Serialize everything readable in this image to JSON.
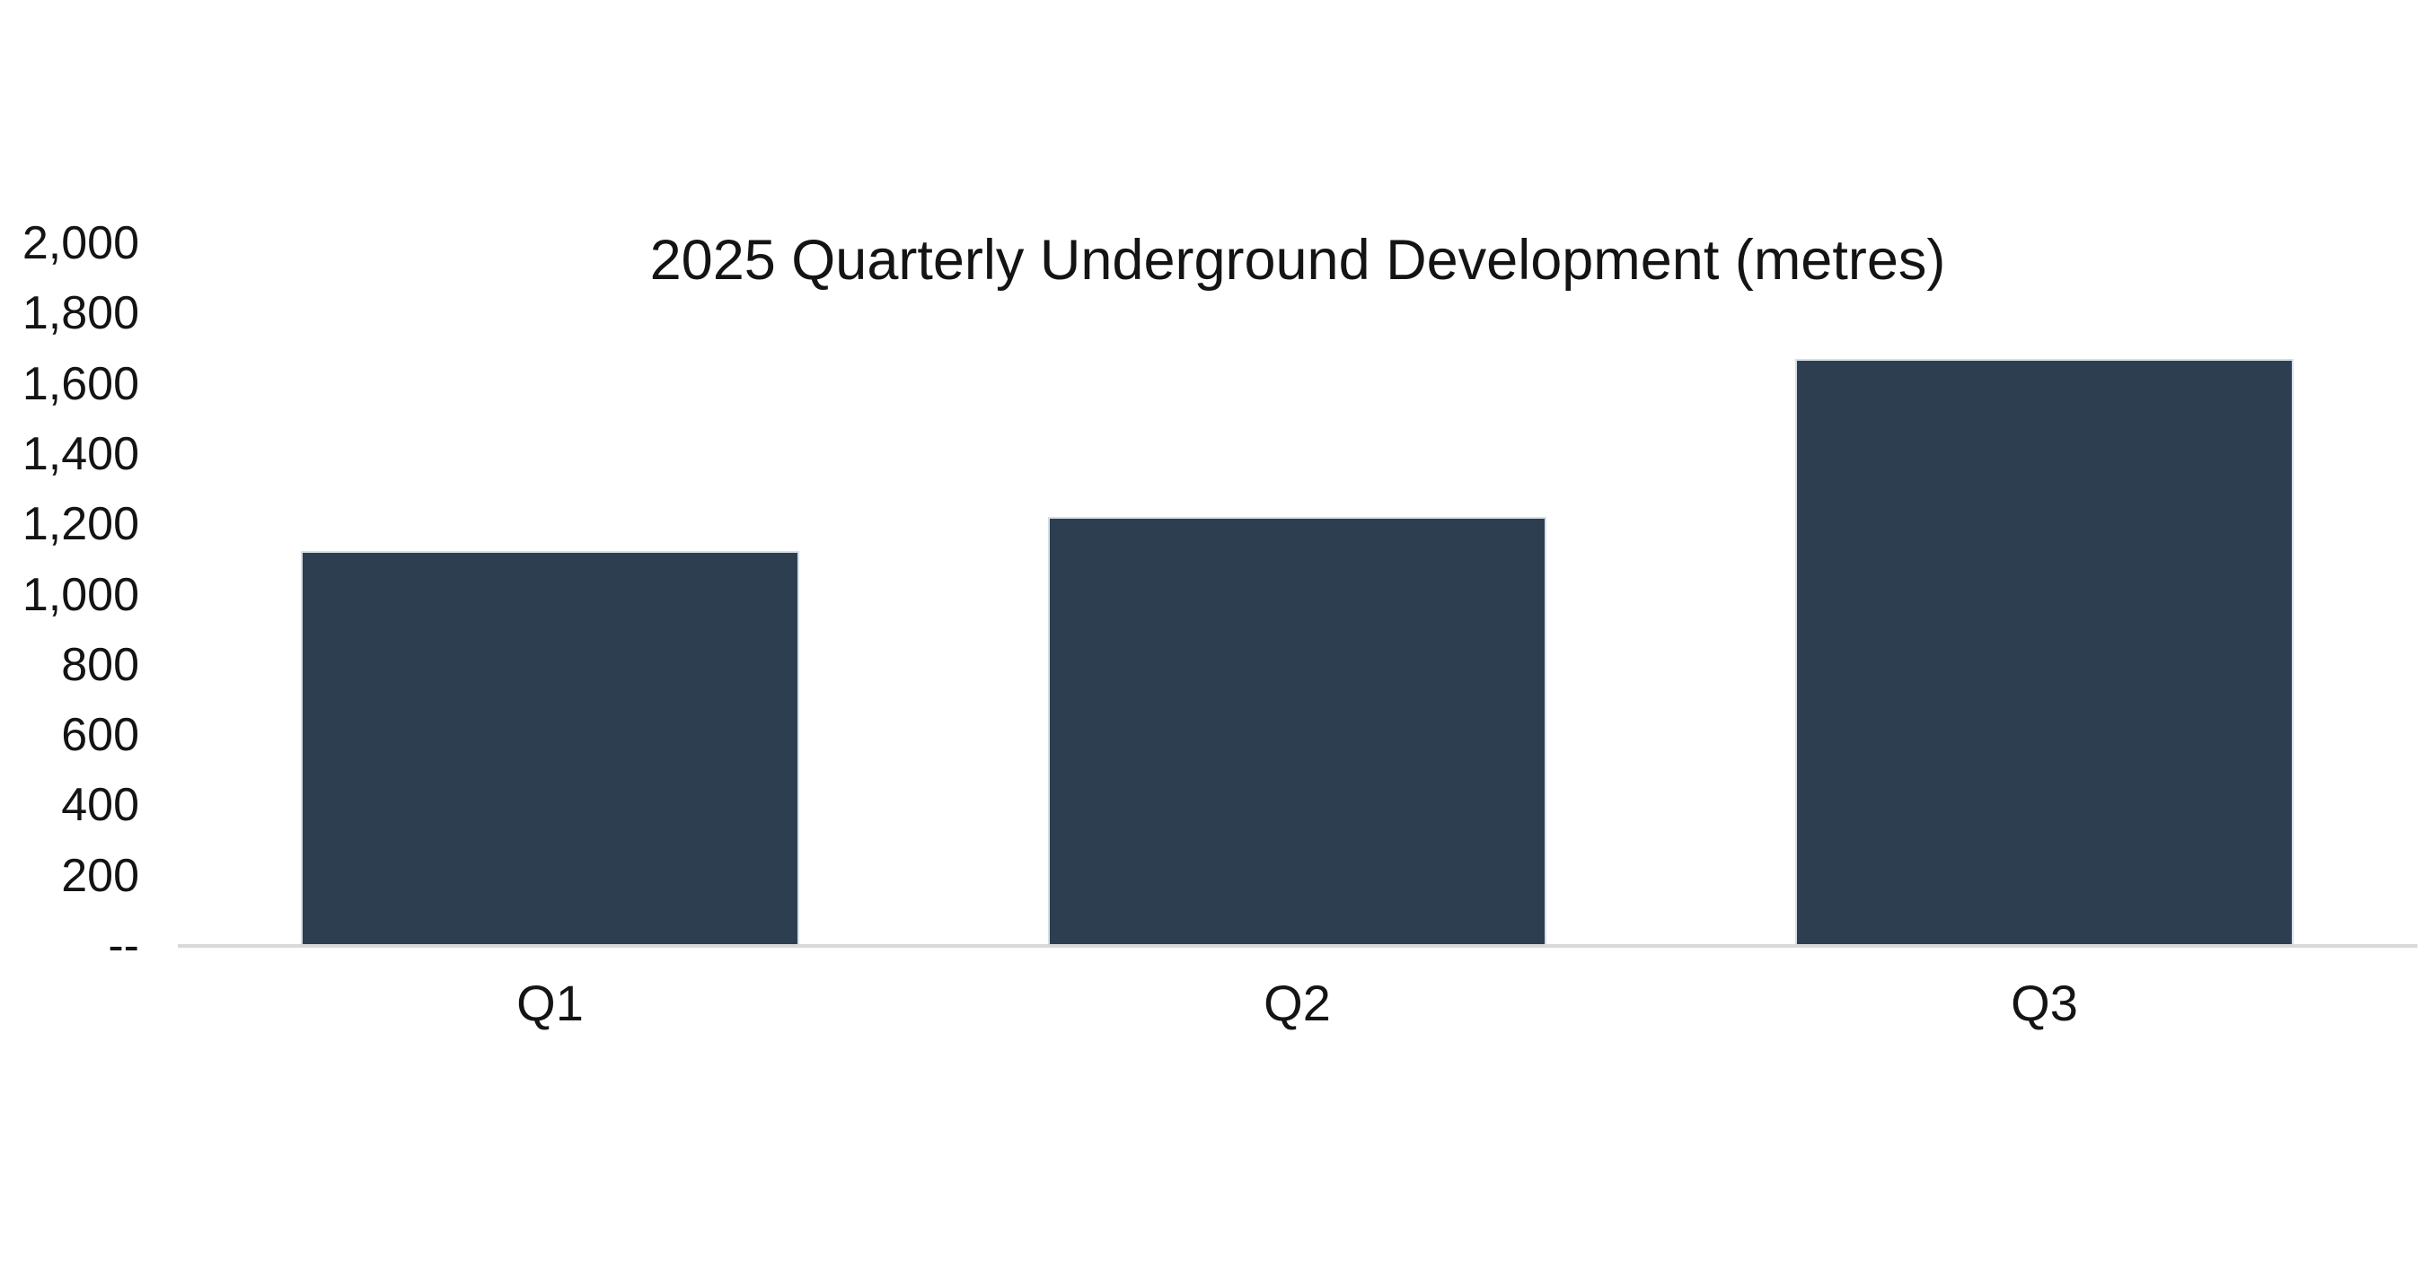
{
  "chart_data": {
    "type": "bar",
    "title": "2025 Quarterly Underground Development (metres)",
    "categories": [
      "Q1",
      "Q2",
      "Q3"
    ],
    "values": [
      1125,
      1220,
      1670
    ],
    "series": [
      {
        "name": "Underground development (metres)",
        "values": [
          1125,
          1220,
          1670
        ]
      }
    ],
    "xlabel": "",
    "ylabel": "",
    "ylim": [
      0,
      2000
    ],
    "ytick_step": 200,
    "yticks": [
      {
        "value": 2000,
        "label": "2,000"
      },
      {
        "value": 1800,
        "label": "1,800"
      },
      {
        "value": 1600,
        "label": "1,600"
      },
      {
        "value": 1400,
        "label": "1,400"
      },
      {
        "value": 1200,
        "label": "1,200"
      },
      {
        "value": 1000,
        "label": "1,000"
      },
      {
        "value": 800,
        "label": "800"
      },
      {
        "value": 600,
        "label": "600"
      },
      {
        "value": 400,
        "label": "400"
      },
      {
        "value": 200,
        "label": "200"
      },
      {
        "value": 0,
        "label": "--"
      }
    ],
    "grid": false,
    "legend": false,
    "colors": {
      "bar_fill": "#2d3e50",
      "bar_border": "#d5dfe9",
      "axis_line": "#d9d9d9",
      "text": "#141414",
      "background": "#ffffff"
    }
  }
}
